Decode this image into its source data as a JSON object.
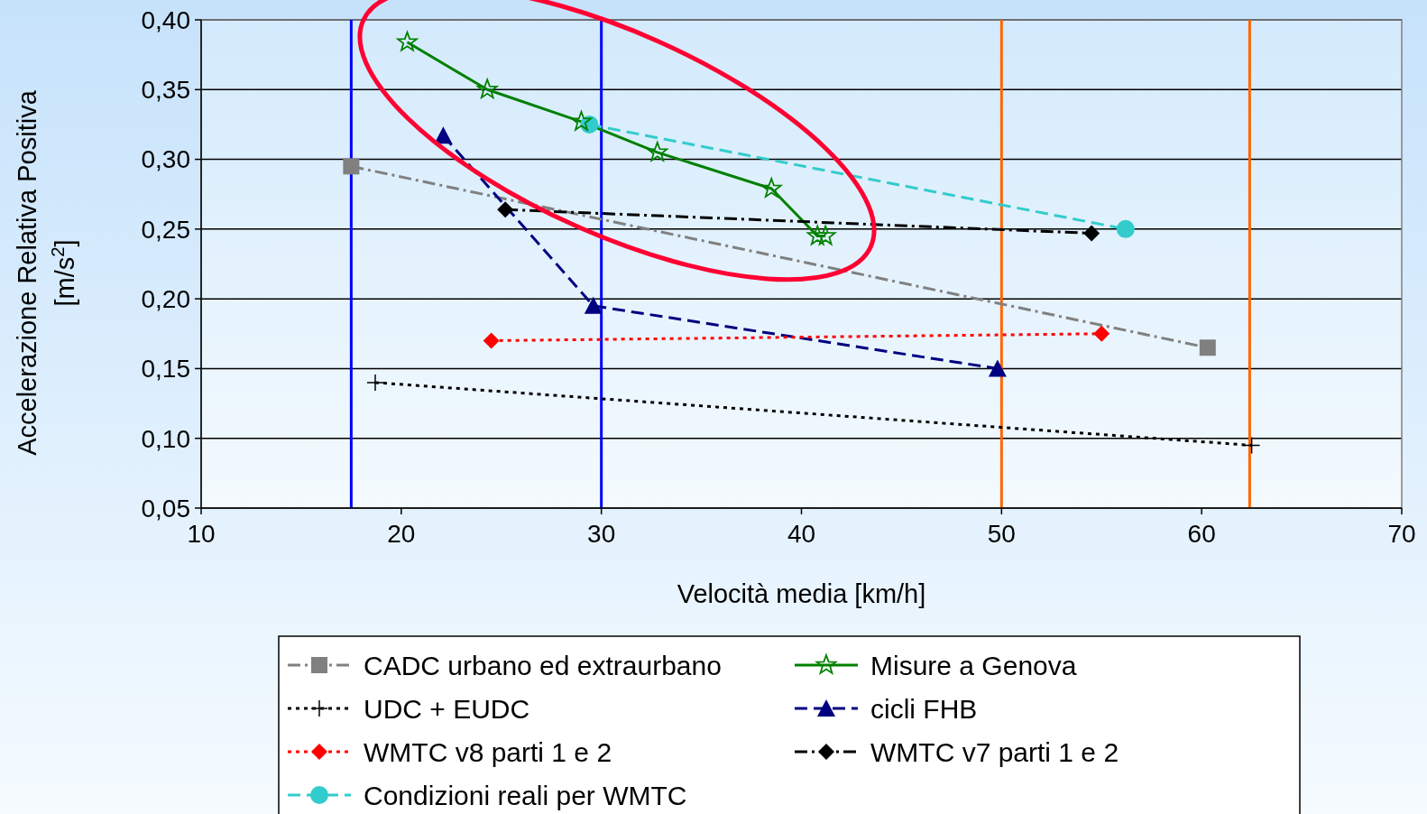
{
  "chart_data": {
    "type": "line",
    "xlabel": "Velocità media [km/h]",
    "ylabel": "Accelerazione Relativa Positiva\n[m/s$^{2}$]",
    "xlim": [
      10,
      70
    ],
    "xticks": [
      10,
      20,
      30,
      40,
      50,
      60,
      70
    ],
    "ylim": [
      0.05,
      0.4
    ],
    "yticks": [
      {
        "value": 0.05,
        "label": "0,05"
      },
      {
        "value": 0.1,
        "label": "0,10"
      },
      {
        "value": 0.15,
        "label": "0,15"
      },
      {
        "value": 0.2,
        "label": "0,20"
      },
      {
        "value": 0.25,
        "label": "0,25"
      },
      {
        "value": 0.3,
        "label": "0,30"
      },
      {
        "value": 0.35,
        "label": "0,35"
      },
      {
        "value": 0.4,
        "label": "0,40"
      }
    ],
    "grid": "y",
    "legend": "bottom",
    "ref_lines": [
      {
        "axis": "x",
        "value": 17.5,
        "color": "#0000ff"
      },
      {
        "axis": "x",
        "value": 30,
        "color": "#0000ff"
      },
      {
        "axis": "x",
        "value": 50,
        "color": "#ff6600"
      },
      {
        "axis": "x",
        "value": 62.4,
        "color": "#ff6600"
      }
    ],
    "series": [
      {
        "name": "CADC urbano ed extraurbano",
        "color": "#808080",
        "marker": "square",
        "line_style": "dashdot",
        "x": [
          17.5,
          60.3
        ],
        "values": [
          0.295,
          0.165
        ]
      },
      {
        "name": "Misure a Genova",
        "color": "#008000",
        "marker": "star",
        "line_style": "solid",
        "x": [
          20.3,
          24.3,
          29,
          32.8,
          38.5,
          40.8,
          41.2
        ],
        "values": [
          0.384,
          0.35,
          0.327,
          0.305,
          0.279,
          0.245,
          0.245
        ]
      },
      {
        "name": "UDC + EUDC",
        "color": "#000000",
        "marker": "cross",
        "line_style": "dotted",
        "x": [
          18.7,
          62.5
        ],
        "values": [
          0.14,
          0.095
        ]
      },
      {
        "name": "cicli FHB",
        "color": "#000080",
        "marker": "triangle",
        "line_style": "dashed",
        "x": [
          22.1,
          29.6,
          49.8
        ],
        "values": [
          0.317,
          0.195,
          0.15
        ]
      },
      {
        "name": "WMTC v8 parti 1 e 2",
        "color": "#ff0000",
        "marker": "diamond",
        "line_style": "dotted",
        "x": [
          24.5,
          55
        ],
        "values": [
          0.17,
          0.175
        ]
      },
      {
        "name": "WMTC v7 parti 1 e 2",
        "color": "#000000",
        "marker": "diamond",
        "line_style": "dashdot",
        "x": [
          25.2,
          54.5
        ],
        "values": [
          0.264,
          0.247
        ]
      },
      {
        "name": "Condizioni reali per WMTC",
        "color": "#33cccc",
        "marker": "circle",
        "line_style": "dashed",
        "x": [
          29.4,
          56.2
        ],
        "values": [
          0.325,
          0.25
        ]
      }
    ]
  }
}
